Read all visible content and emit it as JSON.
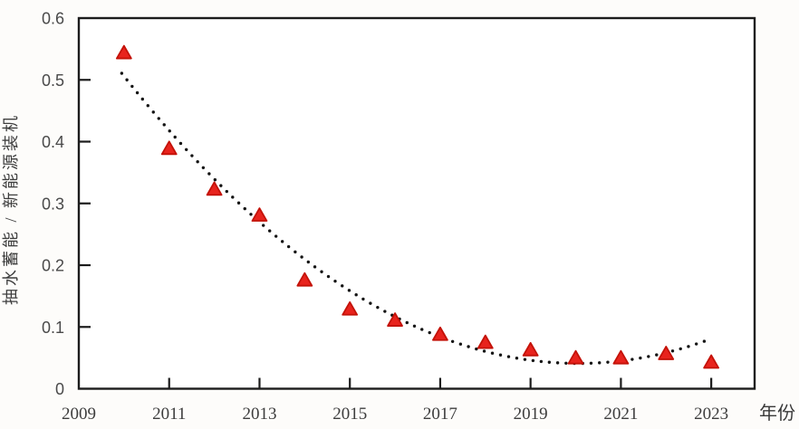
{
  "figure": {
    "background": "#fdfcfa",
    "plot_background": "#ffffff"
  },
  "chart_data": {
    "type": "scatter",
    "title": "",
    "xlabel": "年份",
    "ylabel": "抽水蓄能 / 新能源装机",
    "x": [
      2010,
      2011,
      2012,
      2013,
      2014,
      2015,
      2016,
      2017,
      2018,
      2019,
      2020,
      2021,
      2022,
      2023
    ],
    "values": [
      0.545,
      0.39,
      0.324,
      0.282,
      0.177,
      0.13,
      0.112,
      0.089,
      0.076,
      0.064,
      0.051,
      0.051,
      0.058,
      0.044
    ],
    "xlim": [
      2009,
      2023.96
    ],
    "ylim": [
      0,
      0.6
    ],
    "x_ticks": [
      2009,
      2011,
      2013,
      2015,
      2017,
      2019,
      2021,
      2023
    ],
    "x_tick_labels": [
      "2009",
      "2011",
      "2013",
      "2015",
      "2017",
      "2019",
      "2021",
      "2023"
    ],
    "y_ticks": [
      0,
      0.1,
      0.2,
      0.3,
      0.4,
      0.5,
      0.6
    ],
    "y_tick_labels": [
      "0",
      "0.1",
      "0.2",
      "0.3",
      "0.4",
      "0.5",
      "0.6"
    ],
    "grid": false,
    "legend": null,
    "marker": {
      "shape": "triangle-up",
      "fill": "#e8231d",
      "edge": "#c41208",
      "width": 16,
      "height": 14
    },
    "trendline": {
      "form": "quadratic",
      "style": "dotted",
      "a": 0.0046,
      "b": -0.0925,
      "c": 0.506,
      "u_base_year": 2010,
      "u_start": -0.05,
      "u_end": 12.9,
      "dot_color": "#141414",
      "dot_radius": 1.7,
      "dot_spacing": 9
    },
    "colors": {
      "axis": "#1c1c1c",
      "x_tick_label": "#3d3d3d",
      "y_tick_label": "#4a4a4a"
    }
  }
}
